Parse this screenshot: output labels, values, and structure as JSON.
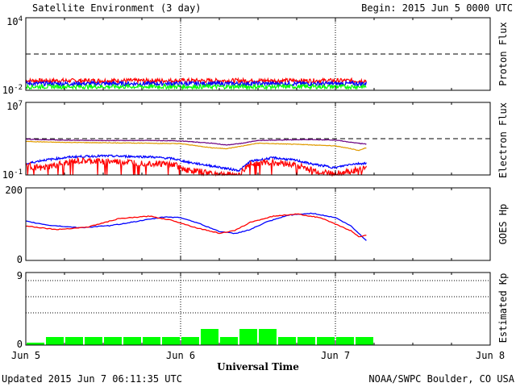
{
  "header": {
    "title": "Satellite Environment (3 day)",
    "begin": "Begin:  2015 Jun 5 0000 UTC"
  },
  "footer": {
    "updated": "Updated 2015 Jun  7 06:11:35 UTC",
    "credit": "NOAA/SWPC Boulder, CO USA"
  },
  "xaxis": {
    "title": "Universal Time",
    "ticks": [
      "Jun 5",
      "Jun 6",
      "Jun 7",
      "Jun 8"
    ]
  },
  "colors": {
    "red": "#ff0000",
    "blue": "#0000ff",
    "green": "#00ff00",
    "purple": "#6a0080",
    "orange": "#e09a00",
    "black": "#000000"
  },
  "chart_data": [
    {
      "type": "line",
      "ylabel": "Proton Flux",
      "yscale": "log",
      "ylim_exp": [
        -2,
        4
      ],
      "ytick_labels": [
        {
          "base": "10",
          "exp": "4"
        },
        {
          "base": "10",
          "exp": "-2"
        }
      ],
      "threshold_exp": 1,
      "xlim_days": [
        0,
        3
      ],
      "series": [
        {
          "color": "red",
          "x": [
            0,
            0.5,
            1,
            1.5,
            2,
            2.2
          ],
          "y_exp": [
            -1.2,
            -1.2,
            -1.2,
            -1.2,
            -1.2,
            -1.2
          ]
        },
        {
          "color": "blue",
          "x": [
            0,
            0.5,
            1,
            1.5,
            2,
            2.2
          ],
          "y_exp": [
            -1.45,
            -1.45,
            -1.45,
            -1.45,
            -1.45,
            -1.45
          ]
        },
        {
          "color": "green",
          "x": [
            0,
            0.5,
            1,
            1.5,
            2,
            2.2
          ],
          "y_exp": [
            -1.7,
            -1.7,
            -1.7,
            -1.7,
            -1.7,
            -1.7
          ]
        }
      ]
    },
    {
      "type": "line",
      "ylabel": "Electron Flux",
      "yscale": "log",
      "ylim_exp": [
        -1,
        7
      ],
      "ytick_labels": [
        {
          "base": "10",
          "exp": "7"
        },
        {
          "base": "10",
          "exp": "-1"
        }
      ],
      "threshold_exp": 3,
      "xlim_days": [
        0,
        3
      ],
      "series": [
        {
          "color": "purple",
          "x": [
            0,
            0.2,
            0.5,
            0.8,
            1.0,
            1.2,
            1.3,
            1.4,
            1.5,
            1.8,
            2.0,
            2.1,
            2.2
          ],
          "y_exp": [
            2.95,
            2.85,
            2.8,
            2.8,
            2.75,
            2.5,
            2.3,
            2.5,
            2.8,
            2.9,
            2.85,
            2.6,
            2.4
          ]
        },
        {
          "color": "orange",
          "x": [
            0,
            0.2,
            0.5,
            0.8,
            1.0,
            1.2,
            1.3,
            1.4,
            1.5,
            1.8,
            2.0,
            2.1,
            2.15,
            2.2
          ],
          "y_exp": [
            2.7,
            2.6,
            2.55,
            2.5,
            2.45,
            2.0,
            1.9,
            2.2,
            2.5,
            2.35,
            2.2,
            1.9,
            1.7,
            2.0
          ]
        },
        {
          "color": "blue",
          "x": [
            0,
            0.1,
            0.3,
            0.5,
            0.8,
            0.95,
            1.05,
            1.2,
            1.3,
            1.38,
            1.45,
            1.6,
            1.75,
            1.85,
            2.0,
            2.1,
            2.2
          ],
          "y_exp": [
            0.2,
            0.6,
            1.0,
            1.1,
            1.0,
            0.8,
            0.4,
            0.0,
            -0.3,
            -0.5,
            0.5,
            0.9,
            0.6,
            0.2,
            -0.2,
            0.2,
            0.3
          ]
        },
        {
          "color": "red",
          "x": [
            0,
            0.1,
            0.3,
            0.5,
            0.8,
            0.95,
            1.05,
            1.2,
            1.3,
            1.38,
            1.45,
            1.6,
            1.75,
            1.85,
            2.0,
            2.1,
            2.2
          ],
          "y_exp": [
            0.1,
            -0.3,
            0.5,
            0.5,
            0.3,
            0.2,
            -0.5,
            -0.8,
            -1.0,
            -1.0,
            0.3,
            0.4,
            0.1,
            -0.5,
            -0.9,
            -0.6,
            -0.3
          ]
        }
      ]
    },
    {
      "type": "line",
      "ylabel": "GOES Hp",
      "yscale": "linear",
      "ylim": [
        0,
        200
      ],
      "yticks": [
        "200",
        "0"
      ],
      "xlim_days": [
        0,
        3
      ],
      "series": [
        {
          "color": "blue",
          "x": [
            0,
            0.15,
            0.35,
            0.55,
            0.75,
            0.9,
            1.0,
            1.1,
            1.25,
            1.35,
            1.45,
            1.55,
            1.7,
            1.85,
            2.0,
            2.1,
            2.15,
            2.2
          ],
          "y": [
            108,
            97,
            90,
            96,
            110,
            120,
            118,
            105,
            80,
            74,
            85,
            105,
            125,
            130,
            118,
            95,
            75,
            55
          ]
        },
        {
          "color": "red",
          "x": [
            0,
            0.2,
            0.4,
            0.6,
            0.8,
            0.95,
            1.1,
            1.25,
            1.35,
            1.45,
            1.6,
            1.75,
            1.9,
            2.0,
            2.1,
            2.15,
            2.2
          ],
          "y": [
            95,
            85,
            92,
            115,
            122,
            110,
            90,
            75,
            82,
            105,
            122,
            128,
            118,
            100,
            82,
            65,
            70
          ]
        }
      ]
    },
    {
      "type": "bar",
      "ylabel": "Estimated Kp",
      "ylim": [
        0,
        9
      ],
      "yticks": [
        "9",
        "0"
      ],
      "gridlines": [
        4,
        6,
        8
      ],
      "xlim_days": [
        0,
        3
      ],
      "bar_width_days": 0.125,
      "color": "green",
      "values": [
        0.3,
        1,
        1,
        1,
        1,
        1,
        1,
        1,
        1,
        2,
        1,
        2,
        2,
        1,
        1,
        1,
        1,
        1
      ]
    }
  ]
}
